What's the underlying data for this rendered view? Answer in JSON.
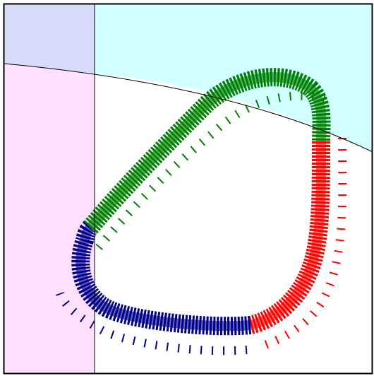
{
  "regions": [
    {
      "color": "#ffe0ff"
    },
    {
      "color": "#d8dcfa"
    },
    {
      "color": "#d2ffff"
    }
  ],
  "segments": [
    {
      "color": "#008000"
    },
    {
      "color": "#ff0000"
    },
    {
      "color": "#00008b"
    }
  ]
}
